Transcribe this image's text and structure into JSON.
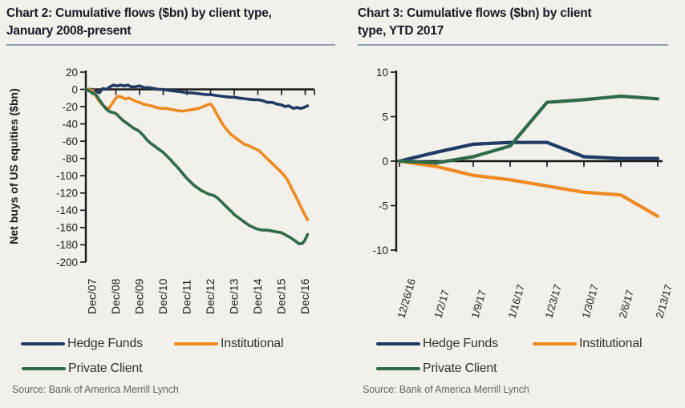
{
  "page": {
    "background_color": "#f2f0ea",
    "title_underline_color": "#8e9cb6"
  },
  "chart_data": [
    {
      "id": "chart2",
      "type": "line",
      "title": "Chart 2: Cumulative flows ($bn) by client type, January 2008-present",
      "title_lines": [
        "Chart 2: Cumulative flows ($bn) by client type,",
        "January 2008-present"
      ],
      "ylabel": "Net buys of US equities ($bn)",
      "xlabel": "",
      "ylim": [
        -200,
        20
      ],
      "y_ticks": [
        20,
        0,
        -20,
        -40,
        -60,
        -80,
        -100,
        -120,
        -140,
        -160,
        -180,
        -200
      ],
      "x_tick_labels": [
        "Dec/07",
        "Dec/08",
        "Dec/09",
        "Dec/10",
        "Dec/11",
        "Dec/12",
        "Dec/13",
        "Dec/14",
        "Dec/15",
        "Dec/16"
      ],
      "x_unit": "years since Dec/07",
      "grid": false,
      "legend_position": "bottom",
      "source": "Source: Bank of America Merrill Lynch",
      "series": [
        {
          "name": "Hedge Funds",
          "color": "#1f3b64",
          "points": [
            [
              -0.25,
              0
            ],
            [
              0,
              0
            ],
            [
              0.15,
              -2
            ],
            [
              0.3,
              -4
            ],
            [
              0.45,
              1
            ],
            [
              0.6,
              0
            ],
            [
              0.75,
              3
            ],
            [
              0.9,
              5
            ],
            [
              1.05,
              4
            ],
            [
              1.2,
              5
            ],
            [
              1.35,
              4
            ],
            [
              1.5,
              5
            ],
            [
              1.65,
              3
            ],
            [
              1.8,
              3
            ],
            [
              2.0,
              4
            ],
            [
              2.2,
              2
            ],
            [
              2.4,
              2
            ],
            [
              2.6,
              1
            ],
            [
              2.8,
              0
            ],
            [
              3.0,
              0
            ],
            [
              3.2,
              -1
            ],
            [
              3.5,
              -2
            ],
            [
              3.8,
              -3
            ],
            [
              4.0,
              -4
            ],
            [
              4.2,
              -4
            ],
            [
              4.5,
              -5
            ],
            [
              4.8,
              -6
            ],
            [
              5.0,
              -6
            ],
            [
              5.2,
              -7
            ],
            [
              5.5,
              -8
            ],
            [
              5.8,
              -9
            ],
            [
              6.0,
              -9
            ],
            [
              6.2,
              -10
            ],
            [
              6.5,
              -11
            ],
            [
              6.8,
              -12
            ],
            [
              7.0,
              -12
            ],
            [
              7.2,
              -13
            ],
            [
              7.4,
              -15
            ],
            [
              7.6,
              -15
            ],
            [
              7.8,
              -17
            ],
            [
              8.0,
              -18
            ],
            [
              8.15,
              -20
            ],
            [
              8.3,
              -19
            ],
            [
              8.5,
              -22
            ],
            [
              8.65,
              -21
            ],
            [
              8.8,
              -22
            ],
            [
              8.95,
              -21
            ],
            [
              9.1,
              -19
            ]
          ]
        },
        {
          "name": "Institutional",
          "color": "#ee8a22",
          "points": [
            [
              -0.25,
              0
            ],
            [
              0,
              -1
            ],
            [
              0.1,
              -5
            ],
            [
              0.25,
              -12
            ],
            [
              0.4,
              -17
            ],
            [
              0.55,
              -21
            ],
            [
              0.7,
              -22
            ],
            [
              0.85,
              -16
            ],
            [
              1.0,
              -10
            ],
            [
              1.1,
              -8
            ],
            [
              1.25,
              -9
            ],
            [
              1.4,
              -11
            ],
            [
              1.55,
              -10
            ],
            [
              1.7,
              -12
            ],
            [
              1.85,
              -14
            ],
            [
              2.0,
              -15
            ],
            [
              2.15,
              -17
            ],
            [
              2.3,
              -18
            ],
            [
              2.5,
              -19
            ],
            [
              2.7,
              -21
            ],
            [
              2.9,
              -22
            ],
            [
              3.1,
              -22
            ],
            [
              3.3,
              -23
            ],
            [
              3.5,
              -24
            ],
            [
              3.7,
              -25
            ],
            [
              3.9,
              -25
            ],
            [
              4.1,
              -24
            ],
            [
              4.3,
              -23
            ],
            [
              4.5,
              -22
            ],
            [
              4.7,
              -20
            ],
            [
              4.85,
              -18
            ],
            [
              5.0,
              -17
            ],
            [
              5.1,
              -20
            ],
            [
              5.25,
              -28
            ],
            [
              5.4,
              -35
            ],
            [
              5.55,
              -42
            ],
            [
              5.7,
              -47
            ],
            [
              5.85,
              -52
            ],
            [
              6.0,
              -55
            ],
            [
              6.15,
              -58
            ],
            [
              6.3,
              -61
            ],
            [
              6.45,
              -64
            ],
            [
              6.6,
              -65
            ],
            [
              6.75,
              -67
            ],
            [
              6.9,
              -69
            ],
            [
              7.05,
              -71
            ],
            [
              7.2,
              -75
            ],
            [
              7.35,
              -79
            ],
            [
              7.5,
              -83
            ],
            [
              7.65,
              -87
            ],
            [
              7.8,
              -91
            ],
            [
              7.95,
              -95
            ],
            [
              8.1,
              -99
            ],
            [
              8.25,
              -105
            ],
            [
              8.4,
              -113
            ],
            [
              8.55,
              -121
            ],
            [
              8.7,
              -129
            ],
            [
              8.85,
              -138
            ],
            [
              9.0,
              -146
            ],
            [
              9.1,
              -151
            ]
          ]
        },
        {
          "name": "Private Client",
          "color": "#2f6a4a",
          "points": [
            [
              -0.25,
              0
            ],
            [
              0.15,
              -6
            ],
            [
              0.3,
              -12
            ],
            [
              0.45,
              -18
            ],
            [
              0.6,
              -23
            ],
            [
              0.75,
              -26
            ],
            [
              0.9,
              -27
            ],
            [
              1.0,
              -28
            ],
            [
              1.15,
              -32
            ],
            [
              1.3,
              -36
            ],
            [
              1.45,
              -39
            ],
            [
              1.6,
              -42
            ],
            [
              1.75,
              -45
            ],
            [
              1.9,
              -47
            ],
            [
              2.0,
              -49
            ],
            [
              2.15,
              -53
            ],
            [
              2.3,
              -58
            ],
            [
              2.45,
              -62
            ],
            [
              2.6,
              -65
            ],
            [
              2.75,
              -68
            ],
            [
              2.9,
              -71
            ],
            [
              3.0,
              -73
            ],
            [
              3.15,
              -77
            ],
            [
              3.3,
              -81
            ],
            [
              3.45,
              -86
            ],
            [
              3.6,
              -90
            ],
            [
              3.75,
              -95
            ],
            [
              3.9,
              -100
            ],
            [
              4.0,
              -103
            ],
            [
              4.15,
              -107
            ],
            [
              4.3,
              -111
            ],
            [
              4.45,
              -114
            ],
            [
              4.6,
              -117
            ],
            [
              4.75,
              -119
            ],
            [
              4.9,
              -121
            ],
            [
              5.0,
              -122
            ],
            [
              5.15,
              -123
            ],
            [
              5.3,
              -126
            ],
            [
              5.45,
              -130
            ],
            [
              5.6,
              -134
            ],
            [
              5.75,
              -138
            ],
            [
              5.9,
              -142
            ],
            [
              6.0,
              -145
            ],
            [
              6.15,
              -148
            ],
            [
              6.3,
              -151
            ],
            [
              6.45,
              -154
            ],
            [
              6.6,
              -157
            ],
            [
              6.75,
              -159
            ],
            [
              6.9,
              -161
            ],
            [
              7.0,
              -162
            ],
            [
              7.2,
              -163
            ],
            [
              7.4,
              -163
            ],
            [
              7.6,
              -164
            ],
            [
              7.8,
              -165
            ],
            [
              8.0,
              -166
            ],
            [
              8.2,
              -169
            ],
            [
              8.4,
              -172
            ],
            [
              8.6,
              -176
            ],
            [
              8.75,
              -179
            ],
            [
              8.9,
              -178
            ],
            [
              9.0,
              -174
            ],
            [
              9.1,
              -168
            ]
          ]
        }
      ]
    },
    {
      "id": "chart3",
      "type": "line",
      "title": "Chart 3: Cumulative flows ($bn) by client type, YTD 2017",
      "title_lines": [
        "Chart 3: Cumulative flows ($bn) by client",
        "type, YTD 2017"
      ],
      "ylabel": "",
      "xlabel": "",
      "ylim": [
        -10,
        10
      ],
      "y_ticks": [
        10,
        5,
        0,
        -5,
        -10
      ],
      "x_tick_labels": [
        "12/26/16",
        "1/2/17",
        "1/9/17",
        "1/16/17",
        "1/23/17",
        "1/30/17",
        "2/6/17",
        "2/13/17"
      ],
      "grid": false,
      "legend_position": "bottom",
      "source": "Source: Bank of America Merrill Lynch",
      "series": [
        {
          "name": "Hedge Funds",
          "color": "#1f3b64",
          "values": [
            0,
            1.0,
            1.9,
            2.1,
            2.1,
            0.5,
            0.3,
            0.3
          ]
        },
        {
          "name": "Institutional",
          "color": "#ee8a22",
          "values": [
            0,
            -0.6,
            -1.6,
            -2.1,
            -2.8,
            -3.5,
            -3.8,
            -6.2
          ]
        },
        {
          "name": "Private Client",
          "color": "#2f6a4a",
          "values": [
            0,
            -0.2,
            0.5,
            1.7,
            6.6,
            6.9,
            7.3,
            7.0
          ]
        }
      ]
    }
  ]
}
